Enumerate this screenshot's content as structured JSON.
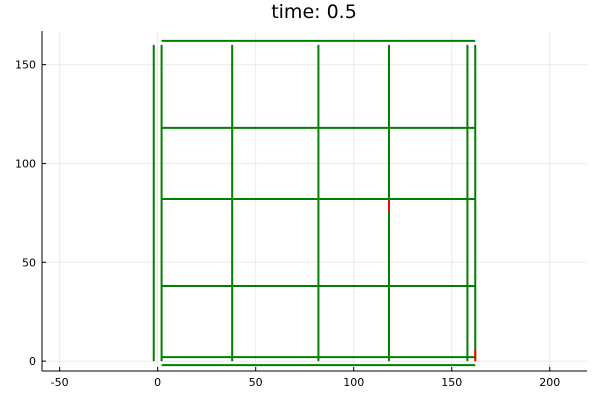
{
  "chart_data": {
    "type": "line",
    "title": "time: 0.5",
    "xlabel": "",
    "ylabel": "",
    "xlim": [
      -59,
      219
    ],
    "ylim": [
      -5,
      167
    ],
    "xticks": [
      -50,
      0,
      50,
      100,
      150,
      200
    ],
    "yticks": [
      0,
      50,
      100,
      150
    ],
    "xtick_labels": [
      "-50",
      "0",
      "50",
      "100",
      "150",
      "200"
    ],
    "ytick_labels": [
      "0",
      "50",
      "100",
      "150"
    ],
    "grid": true,
    "legend": "none",
    "colors": {
      "main": "#008000",
      "highlight": "#ff0000",
      "grid": "#ebebeb",
      "axis": "#000000"
    },
    "series": [
      {
        "color": "#008000",
        "segments": [
          {
            "x": [
              2,
              162
            ],
            "y": [
              162,
              162
            ]
          },
          {
            "x": [
              2,
              162
            ],
            "y": [
              118,
              118
            ]
          },
          {
            "x": [
              2,
              162
            ],
            "y": [
              82,
              82
            ]
          },
          {
            "x": [
              2,
              162
            ],
            "y": [
              38,
              38
            ]
          },
          {
            "x": [
              2,
              162
            ],
            "y": [
              2,
              2
            ]
          },
          {
            "x": [
              2,
              162
            ],
            "y": [
              -2,
              -2
            ]
          },
          {
            "x": [
              -2,
              -2
            ],
            "y": [
              0,
              160
            ]
          },
          {
            "x": [
              2,
              2
            ],
            "y": [
              0,
              160
            ]
          },
          {
            "x": [
              38,
              38
            ],
            "y": [
              0,
              160
            ]
          },
          {
            "x": [
              82,
              82
            ],
            "y": [
              0,
              160
            ]
          },
          {
            "x": [
              118,
              118
            ],
            "y": [
              0,
              160
            ]
          },
          {
            "x": [
              158,
              158
            ],
            "y": [
              0,
              160
            ]
          },
          {
            "x": [
              162,
              162
            ],
            "y": [
              0,
              160
            ]
          }
        ]
      },
      {
        "color": "#ff0000",
        "segments": [
          {
            "x": [
              118,
              118
            ],
            "y": [
              76,
              82
            ]
          },
          {
            "x": [
              162,
              162
            ],
            "y": [
              0,
              6
            ]
          }
        ]
      }
    ]
  }
}
